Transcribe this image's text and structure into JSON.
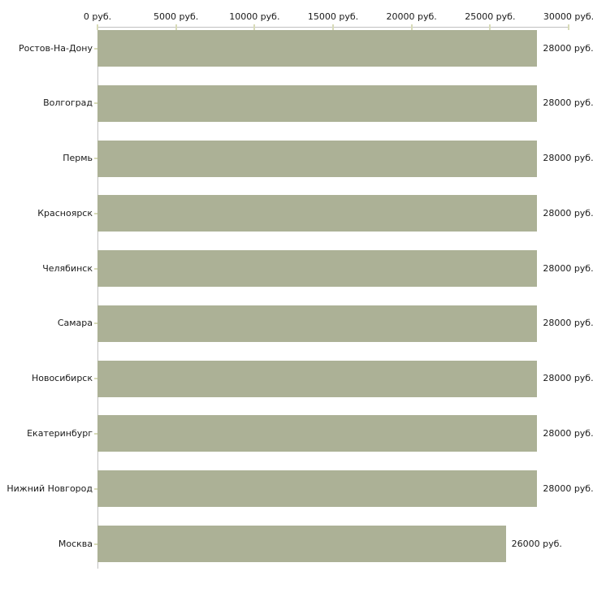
{
  "chart_data": {
    "type": "bar",
    "orientation": "horizontal",
    "title": "",
    "xlabel": "",
    "ylabel": "",
    "unit": "руб.",
    "categories": [
      "Ростов-На-Дону",
      "Волгоград",
      "Пермь",
      "Красноярск",
      "Челябинск",
      "Самара",
      "Новосибирск",
      "Екатеринбург",
      "Нижний Новгород",
      "Москва"
    ],
    "values": [
      28000,
      28000,
      28000,
      28000,
      28000,
      28000,
      28000,
      28000,
      28000,
      26000
    ],
    "value_labels": [
      "28000 руб.",
      "28000 руб.",
      "28000 руб.",
      "28000 руб.",
      "28000 руб.",
      "28000 руб.",
      "28000 руб.",
      "28000 руб.",
      "28000 руб.",
      "26000 руб."
    ],
    "x_ticks": [
      {
        "value": 0,
        "label": "0 руб."
      },
      {
        "value": 5000,
        "label": "5000 руб."
      },
      {
        "value": 10000,
        "label": "10000 руб."
      },
      {
        "value": 15000,
        "label": "15000 руб."
      },
      {
        "value": 20000,
        "label": "20000 руб."
      },
      {
        "value": 25000,
        "label": "25000 руб."
      },
      {
        "value": 30000,
        "label": "30000 руб."
      }
    ],
    "xlim": [
      0,
      30000
    ],
    "grid": false,
    "legend": null,
    "colors": {
      "bar": "#acb196",
      "axis": "#c1c1c1",
      "tick": "#d8dbb8",
      "text": "#1a1a1a",
      "background": "#ffffff"
    }
  }
}
